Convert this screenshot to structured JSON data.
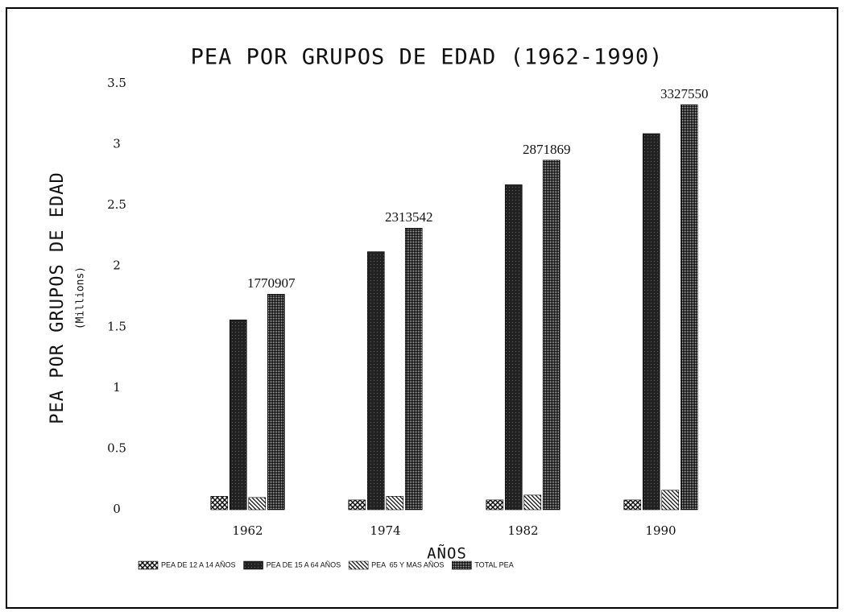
{
  "chart_data": {
    "type": "bar",
    "title": "PEA POR GRUPOS DE EDAD (1962-1990)",
    "y_label": "PEA POR GRUPOS DE EDAD",
    "y_unit": "(Millions)",
    "x_label": "AÑOS",
    "categories": [
      "1962",
      "1974",
      "1982",
      "1990"
    ],
    "series": [
      {
        "name": "PEA DE 12 A 14 AÑOS",
        "color": "#000000",
        "pattern": "crosshatch",
        "values": [
          0.11,
          0.08,
          0.08,
          0.08
        ]
      },
      {
        "name": "PEA DE 15 A 64 AÑOS",
        "color": "#000000",
        "pattern": "solid",
        "values": [
          1.56,
          2.12,
          2.67,
          3.09
        ]
      },
      {
        "name": "PEA  65 Y MAS AÑOS",
        "color": "#000000",
        "pattern": "diagonal",
        "values": [
          0.1,
          0.11,
          0.12,
          0.16
        ]
      },
      {
        "name": "TOTAL PEA",
        "color": "#000000",
        "pattern": "grid",
        "values": [
          1.770907,
          2.313542,
          2.871869,
          3.32755
        ],
        "value_labels": [
          "1770907",
          "2313542",
          "2871869",
          "3327550"
        ]
      }
    ],
    "ylim": [
      0,
      3.5
    ],
    "yticks": [
      0,
      0.5,
      1,
      1.5,
      2,
      2.5,
      3,
      3.5
    ],
    "grid": false,
    "legend": "bottom"
  }
}
